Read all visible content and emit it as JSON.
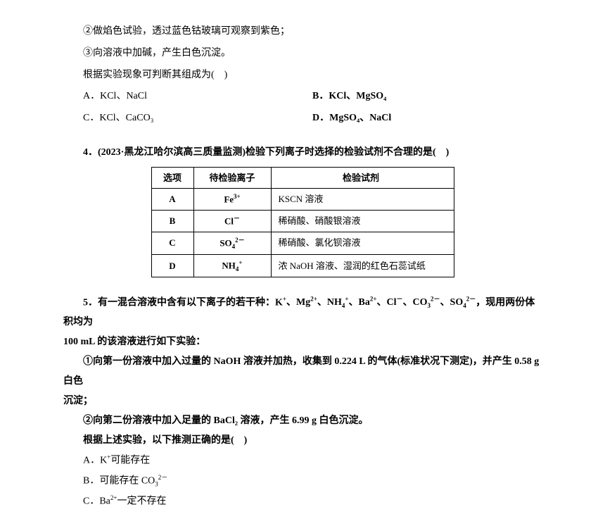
{
  "section1": {
    "line1": "②做焰色试验，透过蓝色钴玻璃可观察到紫色；",
    "line2": "③向溶液中加碱，产生白色沉淀。",
    "line3": "根据实验现象可判断其组成为(　)",
    "optA": "A．KCl、NaCl",
    "optB": "B．KCl、MgSO₄",
    "optC": "C．KCl、CaCO₃",
    "optD": "D．MgSO₄、NaCl"
  },
  "q4": {
    "header": "4．(2023·黑龙江哈尔滨高三质量监测)检验下列离子时选择的检验试剂不合理的是(　)",
    "table": {
      "head": [
        "选项",
        "待检验离子",
        "检验试剂"
      ],
      "rows": [
        {
          "opt": "A",
          "ion_html": "Fe<sup>3+</sup>",
          "reagent": "KSCN 溶液"
        },
        {
          "opt": "B",
          "ion_html": "Cl<sup>－</sup>",
          "reagent": "稀硝酸、硝酸银溶液"
        },
        {
          "opt": "C",
          "ion_html": "SO<sub>4</sub><sup>2－</sup>",
          "reagent": "稀硝酸、氯化钡溶液"
        },
        {
          "opt": "D",
          "ion_html": "NH<sub>4</sub><sup>+</sup>",
          "reagent": "浓 NaOH 溶液、湿润的红色石蕊试纸"
        }
      ]
    }
  },
  "q5": {
    "line1_pre": "5．有一混合溶液中含有以下离子的若干种：K",
    "line1_post": "，现用两份体积均为",
    "line2": "100 mL 的该溶液进行如下实验：",
    "line3": "①向第一份溶液中加入过量的 NaOH 溶液并加热，收集到 0.224 L 的气体(标准状况下测定)，并产生 0.58 g 白色",
    "line4": "沉淀；",
    "line5": "②向第二份溶液中加入足量的 BaCl₂ 溶液，产生 6.99 g 白色沉淀。",
    "line6": "根据上述实验，以下推测正确的是(　)",
    "optA_pre": "A．K",
    "optA_post": "可能存在",
    "optB_pre": "B．可能存在 CO",
    "optC_pre": "C．Ba",
    "optC_post": "一定不存在"
  }
}
